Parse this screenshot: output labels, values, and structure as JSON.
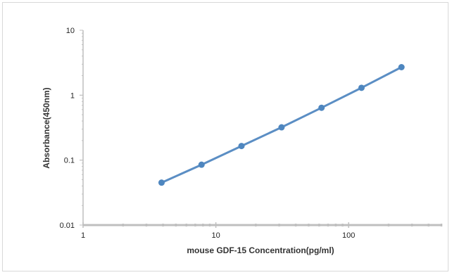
{
  "chart_data": {
    "type": "line",
    "xlabel": "mouse GDF-15 Concentration(pg/ml)",
    "ylabel": "Absorbance(450nm)",
    "x_scale": "log",
    "y_scale": "log",
    "xlim": [
      1,
      500
    ],
    "ylim": [
      0.01,
      10
    ],
    "x_tick_labels": [
      "1",
      "10",
      "100"
    ],
    "y_tick_labels": [
      "0.01",
      "0.1",
      "1",
      "10"
    ],
    "grid": false,
    "series": [
      {
        "x": [
          3.9,
          7.8,
          15.6,
          31.25,
          62.5,
          125,
          250
        ],
        "y": [
          0.045,
          0.085,
          0.165,
          0.32,
          0.64,
          1.3,
          2.7
        ]
      }
    ],
    "colors": {
      "line": "#5b8ec4",
      "marker": "#4e86bf",
      "axis": "#bfbfbf",
      "frame": "#d9d9d9"
    }
  }
}
